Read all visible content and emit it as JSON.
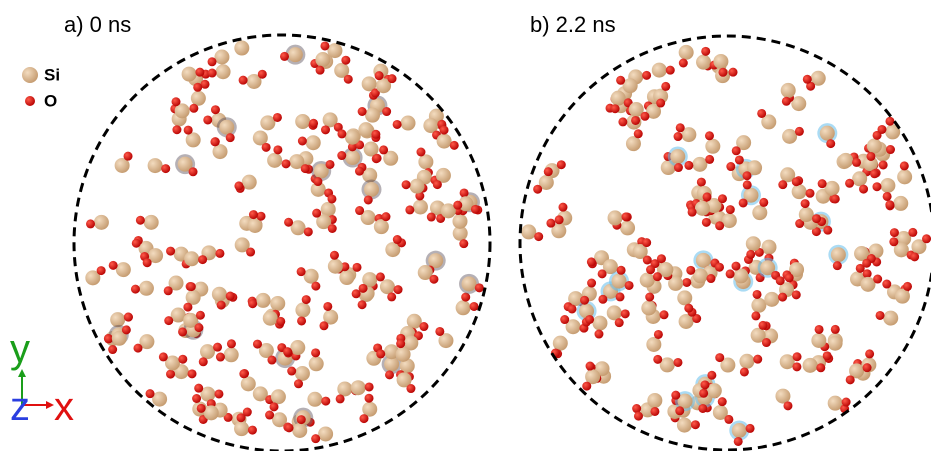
{
  "panels": [
    {
      "label": "a) 0 ns"
    },
    {
      "label": "b) 2.2 ns"
    }
  ],
  "legend": [
    {
      "label": "Si"
    },
    {
      "label": "O"
    }
  ],
  "axes": {
    "y": "y",
    "z": "z",
    "x": "x"
  }
}
